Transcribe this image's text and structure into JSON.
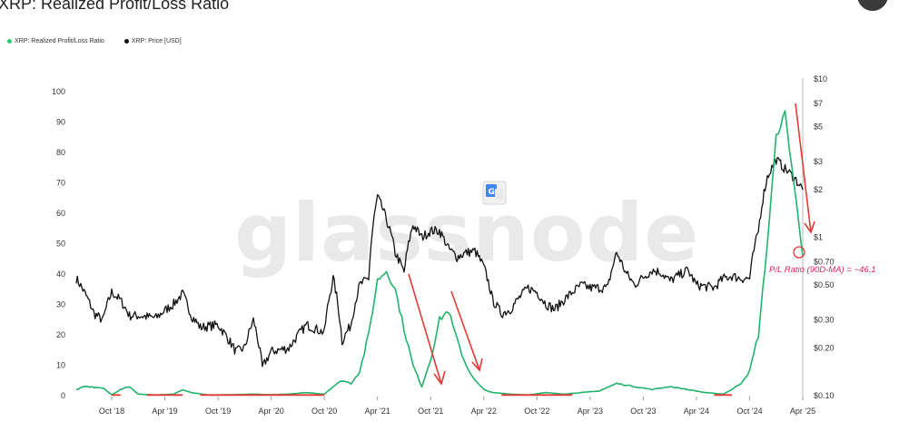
{
  "header": {
    "title": "XRP: Realized Profit/Loss Ratio"
  },
  "legend": {
    "items": [
      {
        "label": "XRP: Realized Profit/Loss Ratio",
        "color": "#2ecc71"
      },
      {
        "label": "XRP: Price [USD]",
        "color": "#111111"
      }
    ]
  },
  "watermark": "glassnode",
  "annotation": "P/L Ratio (90D-MA) = ~46.1",
  "colors": {
    "ratio_green": "#21b36b",
    "ratio_red": "#e53935",
    "price": "#111111",
    "arrow": "#e53935",
    "annotation": "#e0245e"
  },
  "chart_data": {
    "type": "line",
    "title": "XRP: Realized Profit/Loss Ratio",
    "x_range": [
      "2018-06",
      "2025-04"
    ],
    "x_ticks": [
      "Oct '18",
      "Apr '19",
      "Oct '19",
      "Apr '20",
      "Oct '20",
      "Apr '21",
      "Oct '21",
      "Apr '22",
      "Oct '22",
      "Apr '23",
      "Oct '23",
      "Apr '24",
      "Oct '24",
      "Apr '25"
    ],
    "y_left": {
      "range": [
        0,
        100
      ],
      "ticks": [
        "0",
        "10",
        "20",
        "30",
        "40",
        "50",
        "60",
        "70",
        "80",
        "90",
        "100"
      ]
    },
    "y_right": {
      "scale": "log",
      "range": [
        0.1,
        10
      ],
      "ticks": [
        "$0.10",
        "$0.20",
        "$0.30",
        "$0.50",
        "$0.70",
        "$1",
        "$2",
        "$3",
        "$5",
        "$7",
        "$10"
      ]
    },
    "grid": false,
    "legend_position": "top-left",
    "series": [
      {
        "name": "XRP: Realized Profit/Loss Ratio",
        "axis": "left",
        "points": [
          [
            "2018-06",
            2
          ],
          [
            "2018-07",
            3
          ],
          [
            "2018-09",
            2.5
          ],
          [
            "2018-10",
            0.3
          ],
          [
            "2018-11",
            2
          ],
          [
            "2018-12",
            3
          ],
          [
            "2019-01",
            0.5
          ],
          [
            "2019-03",
            0.2
          ],
          [
            "2019-05",
            0.5
          ],
          [
            "2019-06",
            2
          ],
          [
            "2019-07",
            1
          ],
          [
            "2019-09",
            0.2
          ],
          [
            "2019-12",
            0.3
          ],
          [
            "2020-02",
            0.5
          ],
          [
            "2020-04",
            0.3
          ],
          [
            "2020-06",
            0.5
          ],
          [
            "2020-08",
            1
          ],
          [
            "2020-10",
            0.5
          ],
          [
            "2020-11",
            3
          ],
          [
            "2020-12",
            5
          ],
          [
            "2021-01",
            4
          ],
          [
            "2021-02",
            8
          ],
          [
            "2021-03",
            20
          ],
          [
            "2021-04",
            38
          ],
          [
            "2021-05",
            41
          ],
          [
            "2021-06",
            35
          ],
          [
            "2021-07",
            22
          ],
          [
            "2021-08",
            10
          ],
          [
            "2021-09",
            3
          ],
          [
            "2021-10",
            12
          ],
          [
            "2021-11",
            25
          ],
          [
            "2021-12",
            28
          ],
          [
            "2022-01",
            18
          ],
          [
            "2022-02",
            10
          ],
          [
            "2022-03",
            5
          ],
          [
            "2022-04",
            2
          ],
          [
            "2022-05",
            1
          ],
          [
            "2022-07",
            0.5
          ],
          [
            "2022-09",
            0.2
          ],
          [
            "2022-11",
            1
          ],
          [
            "2023-01",
            0.5
          ],
          [
            "2023-03",
            1
          ],
          [
            "2023-05",
            1.5
          ],
          [
            "2023-07",
            4
          ],
          [
            "2023-09",
            3
          ],
          [
            "2023-11",
            2
          ],
          [
            "2024-01",
            3
          ],
          [
            "2024-03",
            2
          ],
          [
            "2024-05",
            1
          ],
          [
            "2024-07",
            0.5
          ],
          [
            "2024-08",
            2
          ],
          [
            "2024-09",
            4
          ],
          [
            "2024-10",
            8
          ],
          [
            "2024-11",
            20
          ],
          [
            "2024-12",
            50
          ],
          [
            "2025-01",
            85
          ],
          [
            "2025-02",
            93
          ],
          [
            "2025-03",
            70
          ],
          [
            "2025-04",
            46.1
          ]
        ],
        "negative_periods": [
          [
            "2018-10",
            "2018-11"
          ],
          [
            "2019-02",
            "2019-06"
          ],
          [
            "2019-08",
            "2020-10"
          ],
          [
            "2022-06",
            "2023-02"
          ],
          [
            "2024-06",
            "2024-08"
          ]
        ]
      },
      {
        "name": "XRP: Price [USD]",
        "axis": "right",
        "points": [
          [
            "2018-06",
            0.55
          ],
          [
            "2018-08",
            0.33
          ],
          [
            "2018-09",
            0.3
          ],
          [
            "2018-10",
            0.45
          ],
          [
            "2018-11",
            0.4
          ],
          [
            "2018-12",
            0.32
          ],
          [
            "2019-01",
            0.32
          ],
          [
            "2019-03",
            0.31
          ],
          [
            "2019-05",
            0.38
          ],
          [
            "2019-06",
            0.44
          ],
          [
            "2019-07",
            0.32
          ],
          [
            "2019-08",
            0.27
          ],
          [
            "2019-10",
            0.28
          ],
          [
            "2019-12",
            0.19
          ],
          [
            "2020-01",
            0.2
          ],
          [
            "2020-02",
            0.3
          ],
          [
            "2020-03",
            0.15
          ],
          [
            "2020-04",
            0.19
          ],
          [
            "2020-06",
            0.2
          ],
          [
            "2020-08",
            0.28
          ],
          [
            "2020-10",
            0.25
          ],
          [
            "2020-11",
            0.55
          ],
          [
            "2020-12",
            0.22
          ],
          [
            "2021-01",
            0.28
          ],
          [
            "2021-02",
            0.5
          ],
          [
            "2021-03",
            0.55
          ],
          [
            "2021-04",
            1.8
          ],
          [
            "2021-05",
            1.3
          ],
          [
            "2021-06",
            0.8
          ],
          [
            "2021-07",
            0.6
          ],
          [
            "2021-08",
            1.2
          ],
          [
            "2021-09",
            1.0
          ],
          [
            "2021-10",
            1.1
          ],
          [
            "2021-11",
            1.1
          ],
          [
            "2021-12",
            0.85
          ],
          [
            "2022-01",
            0.75
          ],
          [
            "2022-02",
            0.8
          ],
          [
            "2022-03",
            0.82
          ],
          [
            "2022-04",
            0.65
          ],
          [
            "2022-05",
            0.4
          ],
          [
            "2022-06",
            0.33
          ],
          [
            "2022-07",
            0.35
          ],
          [
            "2022-09",
            0.48
          ],
          [
            "2022-10",
            0.45
          ],
          [
            "2022-11",
            0.38
          ],
          [
            "2022-12",
            0.35
          ],
          [
            "2023-01",
            0.4
          ],
          [
            "2023-03",
            0.5
          ],
          [
            "2023-04",
            0.48
          ],
          [
            "2023-06",
            0.48
          ],
          [
            "2023-07",
            0.8
          ],
          [
            "2023-08",
            0.6
          ],
          [
            "2023-09",
            0.5
          ],
          [
            "2023-11",
            0.62
          ],
          [
            "2023-12",
            0.6
          ],
          [
            "2024-01",
            0.53
          ],
          [
            "2024-03",
            0.62
          ],
          [
            "2024-04",
            0.5
          ],
          [
            "2024-06",
            0.48
          ],
          [
            "2024-07",
            0.55
          ],
          [
            "2024-08",
            0.57
          ],
          [
            "2024-09",
            0.55
          ],
          [
            "2024-10",
            0.55
          ],
          [
            "2024-11",
            1.1
          ],
          [
            "2024-12",
            2.4
          ],
          [
            "2025-01",
            3.1
          ],
          [
            "2025-02",
            2.7
          ],
          [
            "2025-03",
            2.4
          ],
          [
            "2025-04",
            2.0
          ]
        ]
      }
    ]
  }
}
